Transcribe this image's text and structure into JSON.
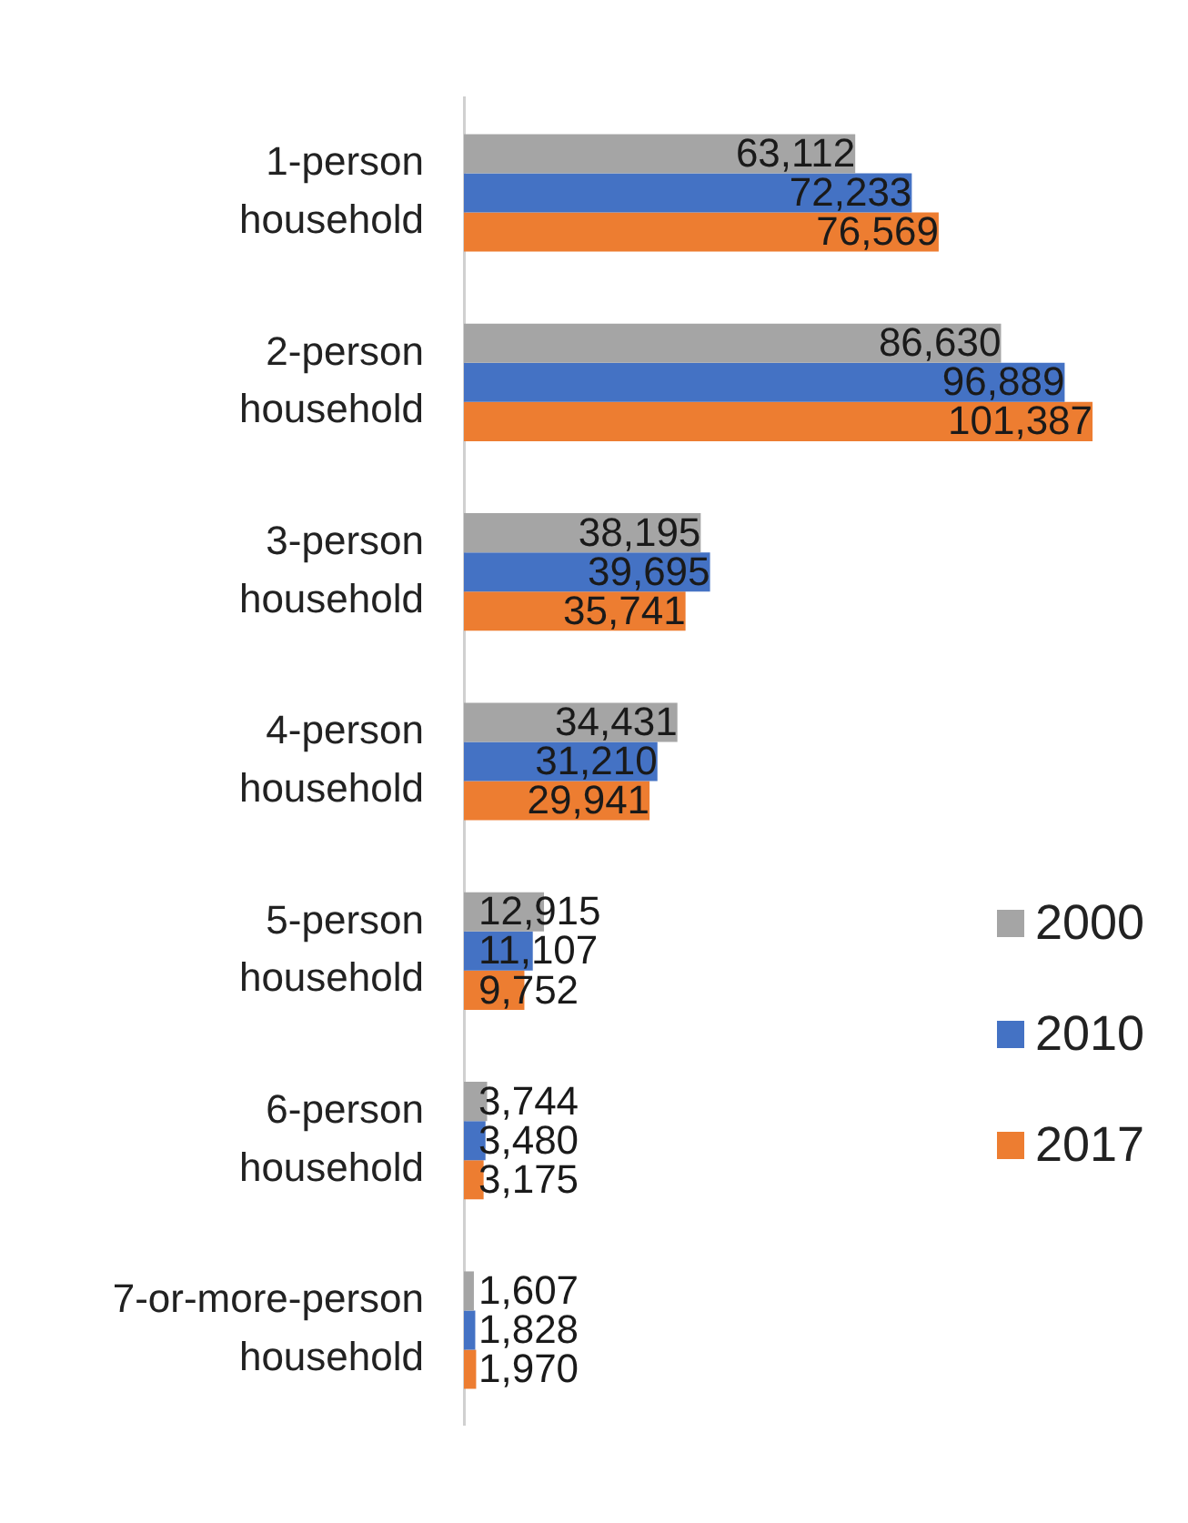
{
  "chart_data": {
    "type": "bar",
    "orientation": "horizontal",
    "legend": "right",
    "categories": [
      "1-person household",
      "2-person household",
      "3-person household",
      "4-person household",
      "5-person household",
      "6-person household",
      "7-or-more-person household"
    ],
    "series": [
      {
        "name": "2000",
        "color": "#a5a5a5",
        "values": [
          63112,
          86630,
          38195,
          34431,
          12915,
          3744,
          1607
        ],
        "value_labels": [
          "63,112",
          "86,630",
          "38,195",
          "34,431",
          "12,915",
          "3,744",
          "1,607"
        ]
      },
      {
        "name": "2010",
        "color": "#4472c4",
        "values": [
          72233,
          96889,
          39695,
          31210,
          11107,
          3480,
          1828
        ],
        "value_labels": [
          "72,233",
          "96,889",
          "39,695",
          "31,210",
          "11,107",
          "3,480",
          "1,828"
        ]
      },
      {
        "name": "2017",
        "color": "#ed7d31",
        "values": [
          76569,
          101387,
          35741,
          29941,
          9752,
          3175,
          1970
        ],
        "value_labels": [
          "76,569",
          "101,387",
          "35,741",
          "29,941",
          "9,752",
          "3,175",
          "1,970"
        ]
      }
    ]
  }
}
